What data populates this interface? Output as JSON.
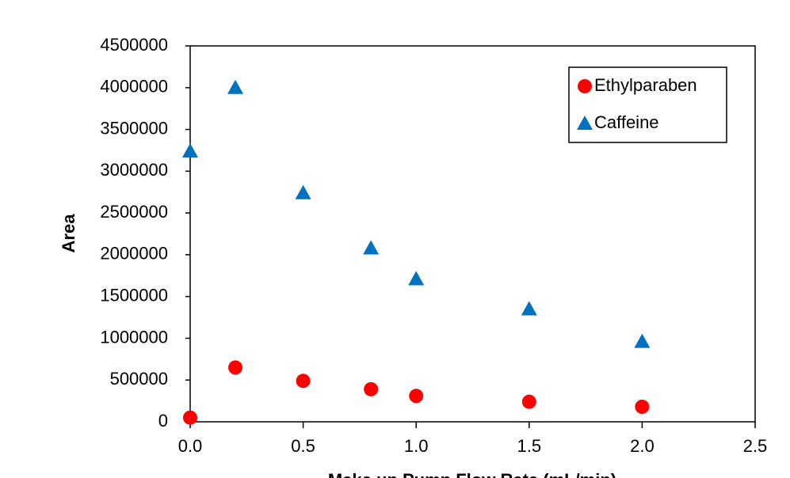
{
  "chart_data": {
    "type": "scatter",
    "y_label": "Area",
    "x_label": "Make up Pump Flow Rate (mL/min)",
    "series": [
      {
        "name": "Ethylparaben",
        "color": "#ff0000",
        "marker": "circle",
        "x": [
          0,
          0.2,
          0.5,
          0.8,
          1.0,
          1.5,
          2.0
        ],
        "values": [
          50000,
          650000,
          490000,
          390000,
          310000,
          240000,
          180000
        ]
      },
      {
        "name": "Caffeine",
        "color": "#0070c0",
        "marker": "triangle",
        "x": [
          0,
          0.2,
          0.5,
          0.8,
          1.0,
          1.5,
          2.0
        ],
        "values": [
          3240000,
          4000000,
          2740000,
          2080000,
          1710000,
          1350000,
          960000
        ]
      }
    ],
    "xlim": [
      0,
      2.5
    ],
    "xticks": [
      {
        "value": 0,
        "label": "0.0"
      },
      0.5,
      {
        "value": 1,
        "label": "1.0"
      },
      1.5,
      {
        "value": 2,
        "label": "2.0"
      },
      2.5
    ],
    "ylim": [
      0,
      4500000
    ],
    "yticks": [
      0,
      500000,
      1000000,
      1500000,
      2000000,
      2500000,
      3000000,
      3500000,
      4000000,
      4500000
    ],
    "legend": "top-right"
  }
}
